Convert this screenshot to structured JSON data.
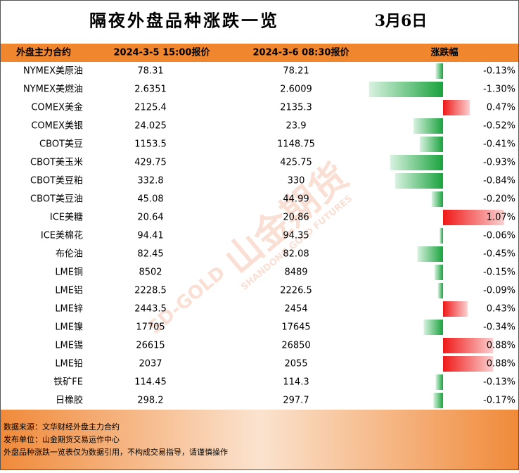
{
  "header": {
    "title": "隔夜外盘品种涨跌一览",
    "date": "3月6日"
  },
  "table": {
    "columns": [
      "外盘主力合约",
      "2024-3-5 15:00报价",
      "2024-3-6 08:30报价",
      "涨跌幅"
    ],
    "rows": [
      [
        "NYMEX美原油",
        78.31,
        78.21,
        {
          "value": -0.13,
          "label": "-0.13%"
        }
      ],
      [
        "NYMEX美燃油",
        2.6351,
        2.6009,
        {
          "value": -1.3,
          "label": "-1.30%"
        }
      ],
      [
        "COMEX美金",
        2125.4,
        2135.3,
        {
          "value": 0.47,
          "label": "0.47%"
        }
      ],
      [
        "COMEX美银",
        24.025,
        23.9,
        {
          "value": -0.52,
          "label": "-0.52%"
        }
      ],
      [
        "CBOT美豆",
        1153.5,
        1148.75,
        {
          "value": -0.41,
          "label": "-0.41%"
        }
      ],
      [
        "CBOT美玉米",
        429.75,
        425.75,
        {
          "value": -0.93,
          "label": "-0.93%"
        }
      ],
      [
        "CBOT美豆粕",
        332.8,
        330,
        {
          "value": -0.84,
          "label": "-0.84%"
        }
      ],
      [
        "CBOT美豆油",
        45.08,
        44.99,
        {
          "value": -0.2,
          "label": "-0.20%"
        }
      ],
      [
        "ICE美糖",
        20.64,
        20.86,
        {
          "value": 1.07,
          "label": "1.07%"
        }
      ],
      [
        "ICE美棉花",
        94.41,
        94.35,
        {
          "value": -0.06,
          "label": "-0.06%"
        }
      ],
      [
        "布伦油",
        82.45,
        82.08,
        {
          "value": -0.45,
          "label": "-0.45%"
        }
      ],
      [
        "LME铜",
        8502,
        8489,
        {
          "value": -0.15,
          "label": "-0.15%"
        }
      ],
      [
        "LME铝",
        2228.5,
        2226.5,
        {
          "value": -0.09,
          "label": "-0.09%"
        }
      ],
      [
        "LME锌",
        2443.5,
        2454,
        {
          "value": 0.43,
          "label": "0.43%"
        }
      ],
      [
        "LME镍",
        17705,
        17645,
        {
          "value": -0.34,
          "label": "-0.34%"
        }
      ],
      [
        "LME锡",
        26615,
        26850,
        {
          "value": 0.88,
          "label": "0.88%"
        }
      ],
      [
        "LME铅",
        2037,
        2055,
        {
          "value": 0.88,
          "label": "0.88%"
        }
      ],
      [
        "铁矿FE",
        114.45,
        114.3,
        {
          "value": -0.13,
          "label": "-0.13%"
        }
      ],
      [
        "日橡胶",
        298.2,
        297.7,
        {
          "value": -0.17,
          "label": "-0.17%"
        }
      ]
    ]
  },
  "footer": [
    "数据来源：文华财经外盘主力合约",
    "发布单位：山金期货交易运作中心",
    "外盘品种涨跌一览表仅为数据引用，不构成交易指导，请谨慎操作"
  ],
  "watermark": {
    "name": "山金期货",
    "english": "SHANDONG GOLD FUTURES",
    "logo": "SD-GOLD"
  }
}
